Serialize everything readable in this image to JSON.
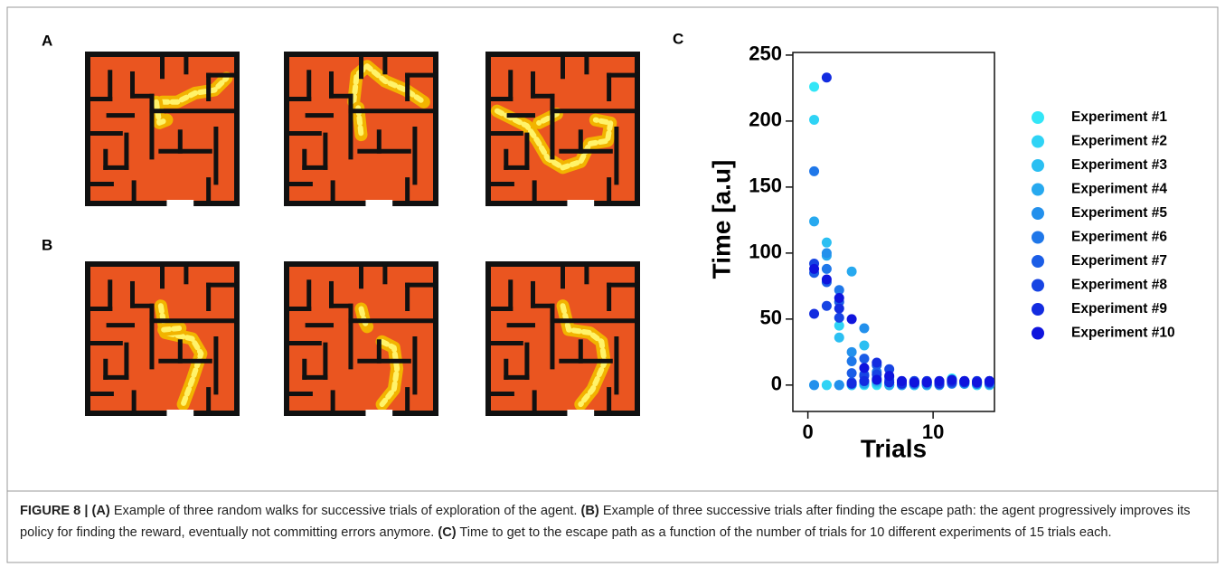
{
  "panel_labels": [
    "A",
    "B",
    "C"
  ],
  "chart_data": {
    "type": "scatter",
    "ylabel": "Time [a.u]",
    "xlabel": "Trials",
    "x": [
      0.5,
      1.5,
      2.5,
      3.5,
      4.5,
      5.5,
      6.5,
      7.5,
      8.5,
      9.5,
      10.5,
      11.5,
      12.5,
      13.5,
      14.5
    ],
    "xlim": [
      -1.2,
      14.9
    ],
    "xticks": [
      0,
      10
    ],
    "ylim": [
      -20,
      252
    ],
    "yticks": [
      0,
      50,
      100,
      150,
      200,
      250
    ],
    "series": [
      {
        "name": "Experiment #1",
        "color": "#33e6f7",
        "values": [
          226,
          0,
          0,
          0,
          0,
          0,
          0,
          0,
          0,
          0,
          2,
          5,
          1,
          0,
          2
        ]
      },
      {
        "name": "Experiment #2",
        "color": "#2fd3f5",
        "values": [
          201,
          0,
          45,
          0,
          2,
          1,
          0,
          0,
          0,
          0,
          0,
          3,
          2,
          0,
          1
        ]
      },
      {
        "name": "Experiment #3",
        "color": "#2bbff2",
        "values": [
          0,
          108,
          36,
          0,
          30,
          2,
          0,
          1,
          0,
          0,
          2,
          4,
          1,
          3,
          0
        ]
      },
      {
        "name": "Experiment #4",
        "color": "#27a9ef",
        "values": [
          124,
          98,
          0,
          86,
          1,
          3,
          0,
          1,
          2,
          0,
          1,
          2,
          3,
          1,
          2
        ]
      },
      {
        "name": "Experiment #5",
        "color": "#2390ec",
        "values": [
          0,
          100,
          0,
          25,
          43,
          5,
          2,
          0,
          1,
          3,
          0,
          2,
          1,
          2,
          3
        ]
      },
      {
        "name": "Experiment #6",
        "color": "#1f77e9",
        "values": [
          162,
          88,
          72,
          18,
          8,
          10,
          6,
          2,
          3,
          1,
          2,
          1,
          3,
          2,
          1
        ]
      },
      {
        "name": "Experiment #7",
        "color": "#1b5de6",
        "values": [
          85,
          78,
          63,
          9,
          20,
          15,
          4,
          3,
          1,
          2,
          2,
          3,
          2,
          1,
          3
        ]
      },
      {
        "name": "Experiment #8",
        "color": "#1744e3",
        "values": [
          92,
          60,
          51,
          2,
          7,
          8,
          12,
          2,
          3,
          2,
          3,
          2,
          3,
          2,
          2
        ]
      },
      {
        "name": "Experiment #9",
        "color": "#132ce0",
        "values": [
          54,
          233,
          58,
          1,
          3,
          17,
          2,
          1,
          2,
          3,
          1,
          3,
          2,
          3,
          2
        ]
      },
      {
        "name": "Experiment #10",
        "color": "#0f14dd",
        "values": [
          88,
          80,
          66,
          50,
          13,
          4,
          7,
          3,
          2,
          2,
          3,
          4,
          3,
          2,
          3
        ]
      }
    ]
  },
  "caption": [
    {
      "text": "FIGURE 8 | (A)",
      "bold": true
    },
    {
      "text": " Example of three random walks for successive trials of exploration of the agent. ",
      "bold": false
    },
    {
      "text": "(B)",
      "bold": true
    },
    {
      "text": " Example of three successive trials after finding the escape path: the agent progressively improves its policy for finding the reward, eventually not committing errors anymore. ",
      "bold": false
    },
    {
      "text": "(C)",
      "bold": true
    },
    {
      "text": " Time to get to the escape path as a function of the number of trials for 10 different experiments of 15 trials each.",
      "bold": false
    }
  ]
}
